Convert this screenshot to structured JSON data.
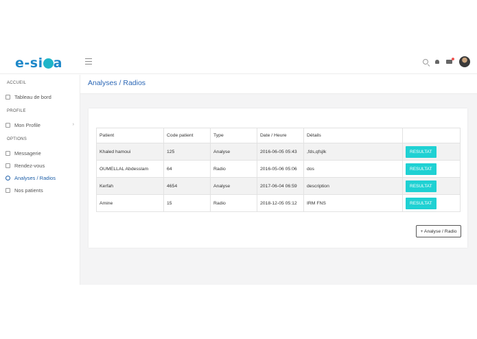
{
  "logo": {
    "text_left": "e-si",
    "text_right": "a"
  },
  "header": {
    "menu_icon": "hamburger-icon",
    "icons": [
      "search-icon",
      "bell-icon",
      "mail-icon",
      "avatar"
    ]
  },
  "sidebar": {
    "sections": [
      "ACCUEIL",
      "PROFILE",
      "OPTIONS"
    ],
    "items": [
      {
        "label": "Tableau de bord",
        "icon": "dashboard-icon"
      },
      {
        "label": "Mon Profile",
        "icon": "profile-icon"
      },
      {
        "label": "Messagerie",
        "icon": "envelope-icon"
      },
      {
        "label": "Rendez-vous",
        "icon": "calendar-icon"
      },
      {
        "label": "Analyses / Radios",
        "icon": "search-icon"
      },
      {
        "label": "Nos patients",
        "icon": "users-icon"
      }
    ]
  },
  "page": {
    "title": "Analyses / Radios"
  },
  "table": {
    "headers": [
      "Patient",
      "Code patient",
      "Type",
      "Date / Heure",
      "Détails",
      ""
    ],
    "rows": [
      [
        "Khaled hamoui",
        "125",
        "Analyse",
        "2016-06-05 05:43",
        ",fds,qfsjlk",
        "RESULTAT"
      ],
      [
        "OUMELLAL Abdesslam",
        "64",
        "Radio",
        "2016-05-06 05:06",
        "dos",
        "RESULTAT"
      ],
      [
        "Kerfah",
        "4654",
        "Analyse",
        "2017-06-04 06:59",
        "description",
        "RESULTAT"
      ],
      [
        "Amine",
        "15",
        "Radio",
        "2018-12-05 05:12",
        "IRM FNS",
        "RESULTAT"
      ]
    ]
  },
  "actions": {
    "add_label": "+ Analyse / Radio"
  },
  "colors": {
    "brand": "#1e88c9",
    "accent": "#1fd1d3",
    "active_nav": "#1e5fa8"
  }
}
